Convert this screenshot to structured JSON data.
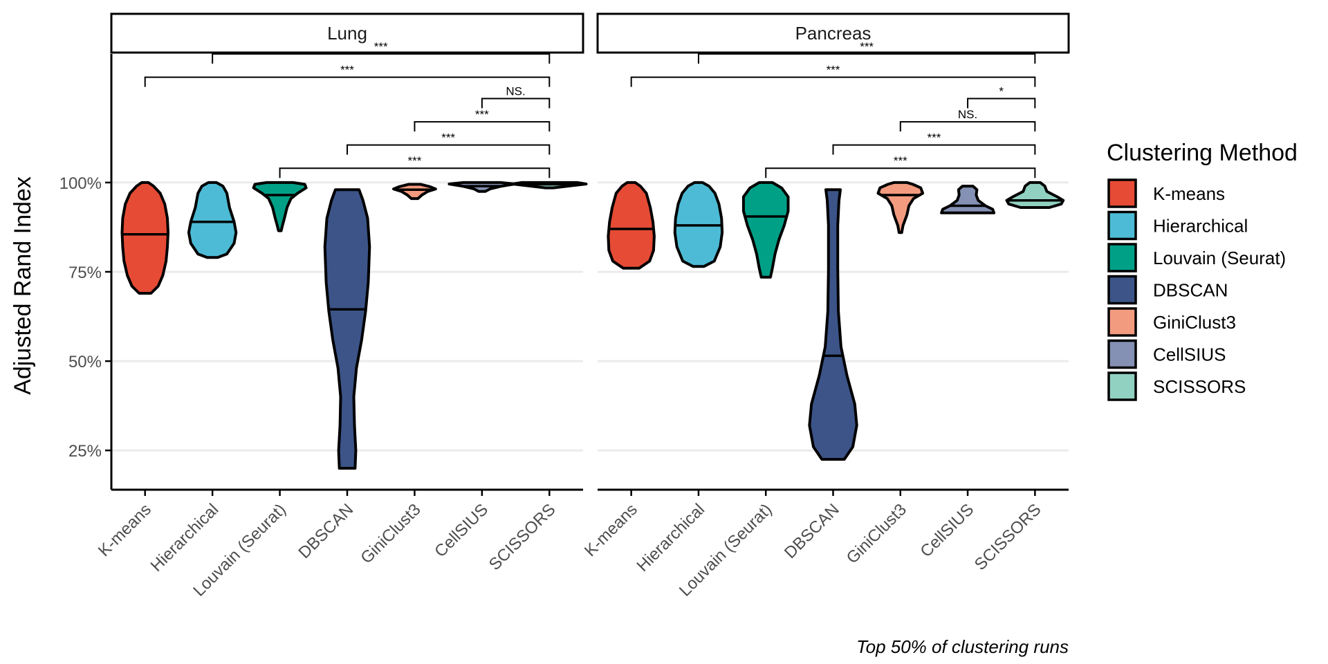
{
  "chart_data": {
    "type": "violin",
    "ylabel": "Adjusted Rand Index",
    "yticks": [
      "25%",
      "50%",
      "75%",
      "100%"
    ],
    "ytick_values": [
      0.25,
      0.5,
      0.75,
      1.0
    ],
    "ylim": [
      0.14,
      1.36
    ],
    "grid": "horizontal",
    "legend_position": "right",
    "caption": "Top 50% of clustering runs",
    "categories": [
      "K-means",
      "Hierarchical",
      "Louvain (Seurat)",
      "DBSCAN",
      "GiniClust3",
      "CellSIUS",
      "SCISSORS"
    ],
    "legend": {
      "title": "Clustering Method",
      "items": [
        {
          "label": "K-means",
          "color": "#E64B35"
        },
        {
          "label": "Hierarchical",
          "color": "#4DBBD5"
        },
        {
          "label": "Louvain (Seurat)",
          "color": "#00A087"
        },
        {
          "label": "DBSCAN",
          "color": "#3C5488"
        },
        {
          "label": "GiniClust3",
          "color": "#F39B7F"
        },
        {
          "label": "CellSIUS",
          "color": "#8491B4"
        },
        {
          "label": "SCISSORS",
          "color": "#91D1C2"
        }
      ]
    },
    "panels": [
      {
        "name": "Lung",
        "violins": [
          {
            "category": "K-means",
            "min": 0.69,
            "max": 1.0,
            "median": 0.855,
            "profile": [
              [
                0.69,
                0.09
              ],
              [
                0.71,
                0.2
              ],
              [
                0.74,
                0.27
              ],
              [
                0.78,
                0.32
              ],
              [
                0.82,
                0.34
              ],
              [
                0.86,
                0.35
              ],
              [
                0.9,
                0.34
              ],
              [
                0.94,
                0.3
              ],
              [
                0.97,
                0.23
              ],
              [
                0.99,
                0.13
              ],
              [
                1.0,
                0.05
              ]
            ]
          },
          {
            "category": "Hierarchical",
            "min": 0.79,
            "max": 1.0,
            "median": 0.89,
            "profile": [
              [
                0.79,
                0.08
              ],
              [
                0.8,
                0.22
              ],
              [
                0.83,
                0.33
              ],
              [
                0.86,
                0.36
              ],
              [
                0.89,
                0.33
              ],
              [
                0.93,
                0.26
              ],
              [
                0.97,
                0.22
              ],
              [
                0.99,
                0.16
              ],
              [
                1.0,
                0.06
              ]
            ]
          },
          {
            "category": "Louvain (Seurat)",
            "min": 0.865,
            "max": 1.0,
            "median": 0.965,
            "profile": [
              [
                0.865,
                0.02
              ],
              [
                0.88,
                0.04
              ],
              [
                0.9,
                0.07
              ],
              [
                0.93,
                0.11
              ],
              [
                0.955,
                0.17
              ],
              [
                0.97,
                0.27
              ],
              [
                0.985,
                0.4
              ],
              [
                0.995,
                0.38
              ],
              [
                1.0,
                0.2
              ]
            ]
          },
          {
            "category": "DBSCAN",
            "min": 0.2,
            "max": 0.98,
            "median": 0.645,
            "profile": [
              [
                0.2,
                0.12
              ],
              [
                0.25,
                0.13
              ],
              [
                0.32,
                0.11
              ],
              [
                0.4,
                0.1
              ],
              [
                0.48,
                0.14
              ],
              [
                0.56,
                0.22
              ],
              [
                0.64,
                0.28
              ],
              [
                0.72,
                0.32
              ],
              [
                0.82,
                0.34
              ],
              [
                0.9,
                0.31
              ],
              [
                0.95,
                0.24
              ],
              [
                0.98,
                0.18
              ]
            ]
          },
          {
            "category": "GiniClust3",
            "min": 0.955,
            "max": 0.995,
            "median": 0.98,
            "profile": [
              [
                0.955,
                0.05
              ],
              [
                0.965,
                0.11
              ],
              [
                0.975,
                0.2
              ],
              [
                0.982,
                0.32
              ],
              [
                0.988,
                0.24
              ],
              [
                0.995,
                0.09
              ]
            ]
          },
          {
            "category": "CellSIUS",
            "min": 0.975,
            "max": 1.0,
            "median": 0.99,
            "profile": [
              [
                0.975,
                0.05
              ],
              [
                0.982,
                0.12
              ],
              [
                0.99,
                0.3
              ],
              [
                0.996,
                0.5
              ],
              [
                1.0,
                0.28
              ]
            ]
          },
          {
            "category": "SCISSORS",
            "min": 0.985,
            "max": 1.0,
            "median": 0.995,
            "profile": [
              [
                0.985,
                0.06
              ],
              [
                0.99,
                0.28
              ],
              [
                0.996,
                0.56
              ],
              [
                1.0,
                0.42
              ]
            ]
          }
        ],
        "comparisons": [
          {
            "from": "K-means",
            "to": "SCISSORS",
            "y": 1.295,
            "label": "***"
          },
          {
            "from": "Hierarchical",
            "to": "SCISSORS",
            "y": 1.36,
            "label": "***"
          },
          {
            "from": "Louvain (Seurat)",
            "to": "SCISSORS",
            "y": 1.04,
            "label": "***"
          },
          {
            "from": "DBSCAN",
            "to": "SCISSORS",
            "y": 1.105,
            "label": "***"
          },
          {
            "from": "GiniClust3",
            "to": "SCISSORS",
            "y": 1.17,
            "label": "***"
          },
          {
            "from": "CellSIUS",
            "to": "SCISSORS",
            "y": 1.235,
            "label": "NS."
          }
        ]
      },
      {
        "name": "Pancreas",
        "violins": [
          {
            "category": "K-means",
            "min": 0.76,
            "max": 1.0,
            "median": 0.87,
            "profile": [
              [
                0.76,
                0.12
              ],
              [
                0.78,
                0.28
              ],
              [
                0.81,
                0.34
              ],
              [
                0.85,
                0.35
              ],
              [
                0.89,
                0.33
              ],
              [
                0.93,
                0.29
              ],
              [
                0.97,
                0.23
              ],
              [
                0.99,
                0.14
              ],
              [
                1.0,
                0.06
              ]
            ]
          },
          {
            "category": "Hierarchical",
            "min": 0.765,
            "max": 1.0,
            "median": 0.88,
            "profile": [
              [
                0.765,
                0.08
              ],
              [
                0.78,
                0.24
              ],
              [
                0.82,
                0.33
              ],
              [
                0.86,
                0.36
              ],
              [
                0.9,
                0.35
              ],
              [
                0.94,
                0.31
              ],
              [
                0.97,
                0.25
              ],
              [
                0.99,
                0.16
              ],
              [
                1.0,
                0.06
              ]
            ]
          },
          {
            "category": "Louvain (Seurat)",
            "min": 0.735,
            "max": 1.0,
            "median": 0.905,
            "profile": [
              [
                0.735,
                0.07
              ],
              [
                0.76,
                0.1
              ],
              [
                0.8,
                0.14
              ],
              [
                0.84,
                0.2
              ],
              [
                0.88,
                0.28
              ],
              [
                0.92,
                0.34
              ],
              [
                0.96,
                0.34
              ],
              [
                0.985,
                0.24
              ],
              [
                1.0,
                0.1
              ]
            ]
          },
          {
            "category": "DBSCAN",
            "min": 0.225,
            "max": 0.98,
            "median": 0.515,
            "profile": [
              [
                0.225,
                0.17
              ],
              [
                0.26,
                0.3
              ],
              [
                0.32,
                0.36
              ],
              [
                0.38,
                0.33
              ],
              [
                0.46,
                0.21
              ],
              [
                0.54,
                0.12
              ],
              [
                0.64,
                0.08
              ],
              [
                0.76,
                0.07
              ],
              [
                0.88,
                0.07
              ],
              [
                0.95,
                0.09
              ],
              [
                0.98,
                0.11
              ]
            ]
          },
          {
            "category": "GiniClust3",
            "min": 0.86,
            "max": 1.0,
            "median": 0.965,
            "profile": [
              [
                0.86,
                0.02
              ],
              [
                0.88,
                0.04
              ],
              [
                0.91,
                0.1
              ],
              [
                0.935,
                0.13
              ],
              [
                0.955,
                0.2
              ],
              [
                0.97,
                0.34
              ],
              [
                0.985,
                0.31
              ],
              [
                0.995,
                0.19
              ],
              [
                1.0,
                0.1
              ]
            ]
          },
          {
            "category": "CellSIUS",
            "min": 0.915,
            "max": 0.99,
            "median": 0.935,
            "profile": [
              [
                0.915,
                0.4
              ],
              [
                0.925,
                0.38
              ],
              [
                0.935,
                0.27
              ],
              [
                0.95,
                0.16
              ],
              [
                0.965,
                0.13
              ],
              [
                0.98,
                0.14
              ],
              [
                0.99,
                0.08
              ]
            ]
          },
          {
            "category": "SCISSORS",
            "min": 0.93,
            "max": 1.0,
            "median": 0.95,
            "profile": [
              [
                0.93,
                0.22
              ],
              [
                0.94,
                0.4
              ],
              [
                0.95,
                0.43
              ],
              [
                0.96,
                0.34
              ],
              [
                0.975,
                0.18
              ],
              [
                0.99,
                0.15
              ],
              [
                1.0,
                0.08
              ]
            ]
          }
        ],
        "comparisons": [
          {
            "from": "K-means",
            "to": "SCISSORS",
            "y": 1.295,
            "label": "***"
          },
          {
            "from": "Hierarchical",
            "to": "SCISSORS",
            "y": 1.36,
            "label": "***"
          },
          {
            "from": "Louvain (Seurat)",
            "to": "SCISSORS",
            "y": 1.04,
            "label": "***"
          },
          {
            "from": "DBSCAN",
            "to": "SCISSORS",
            "y": 1.105,
            "label": "***"
          },
          {
            "from": "GiniClust3",
            "to": "SCISSORS",
            "y": 1.17,
            "label": "NS."
          },
          {
            "from": "CellSIUS",
            "to": "SCISSORS",
            "y": 1.235,
            "label": "*"
          }
        ]
      }
    ]
  }
}
